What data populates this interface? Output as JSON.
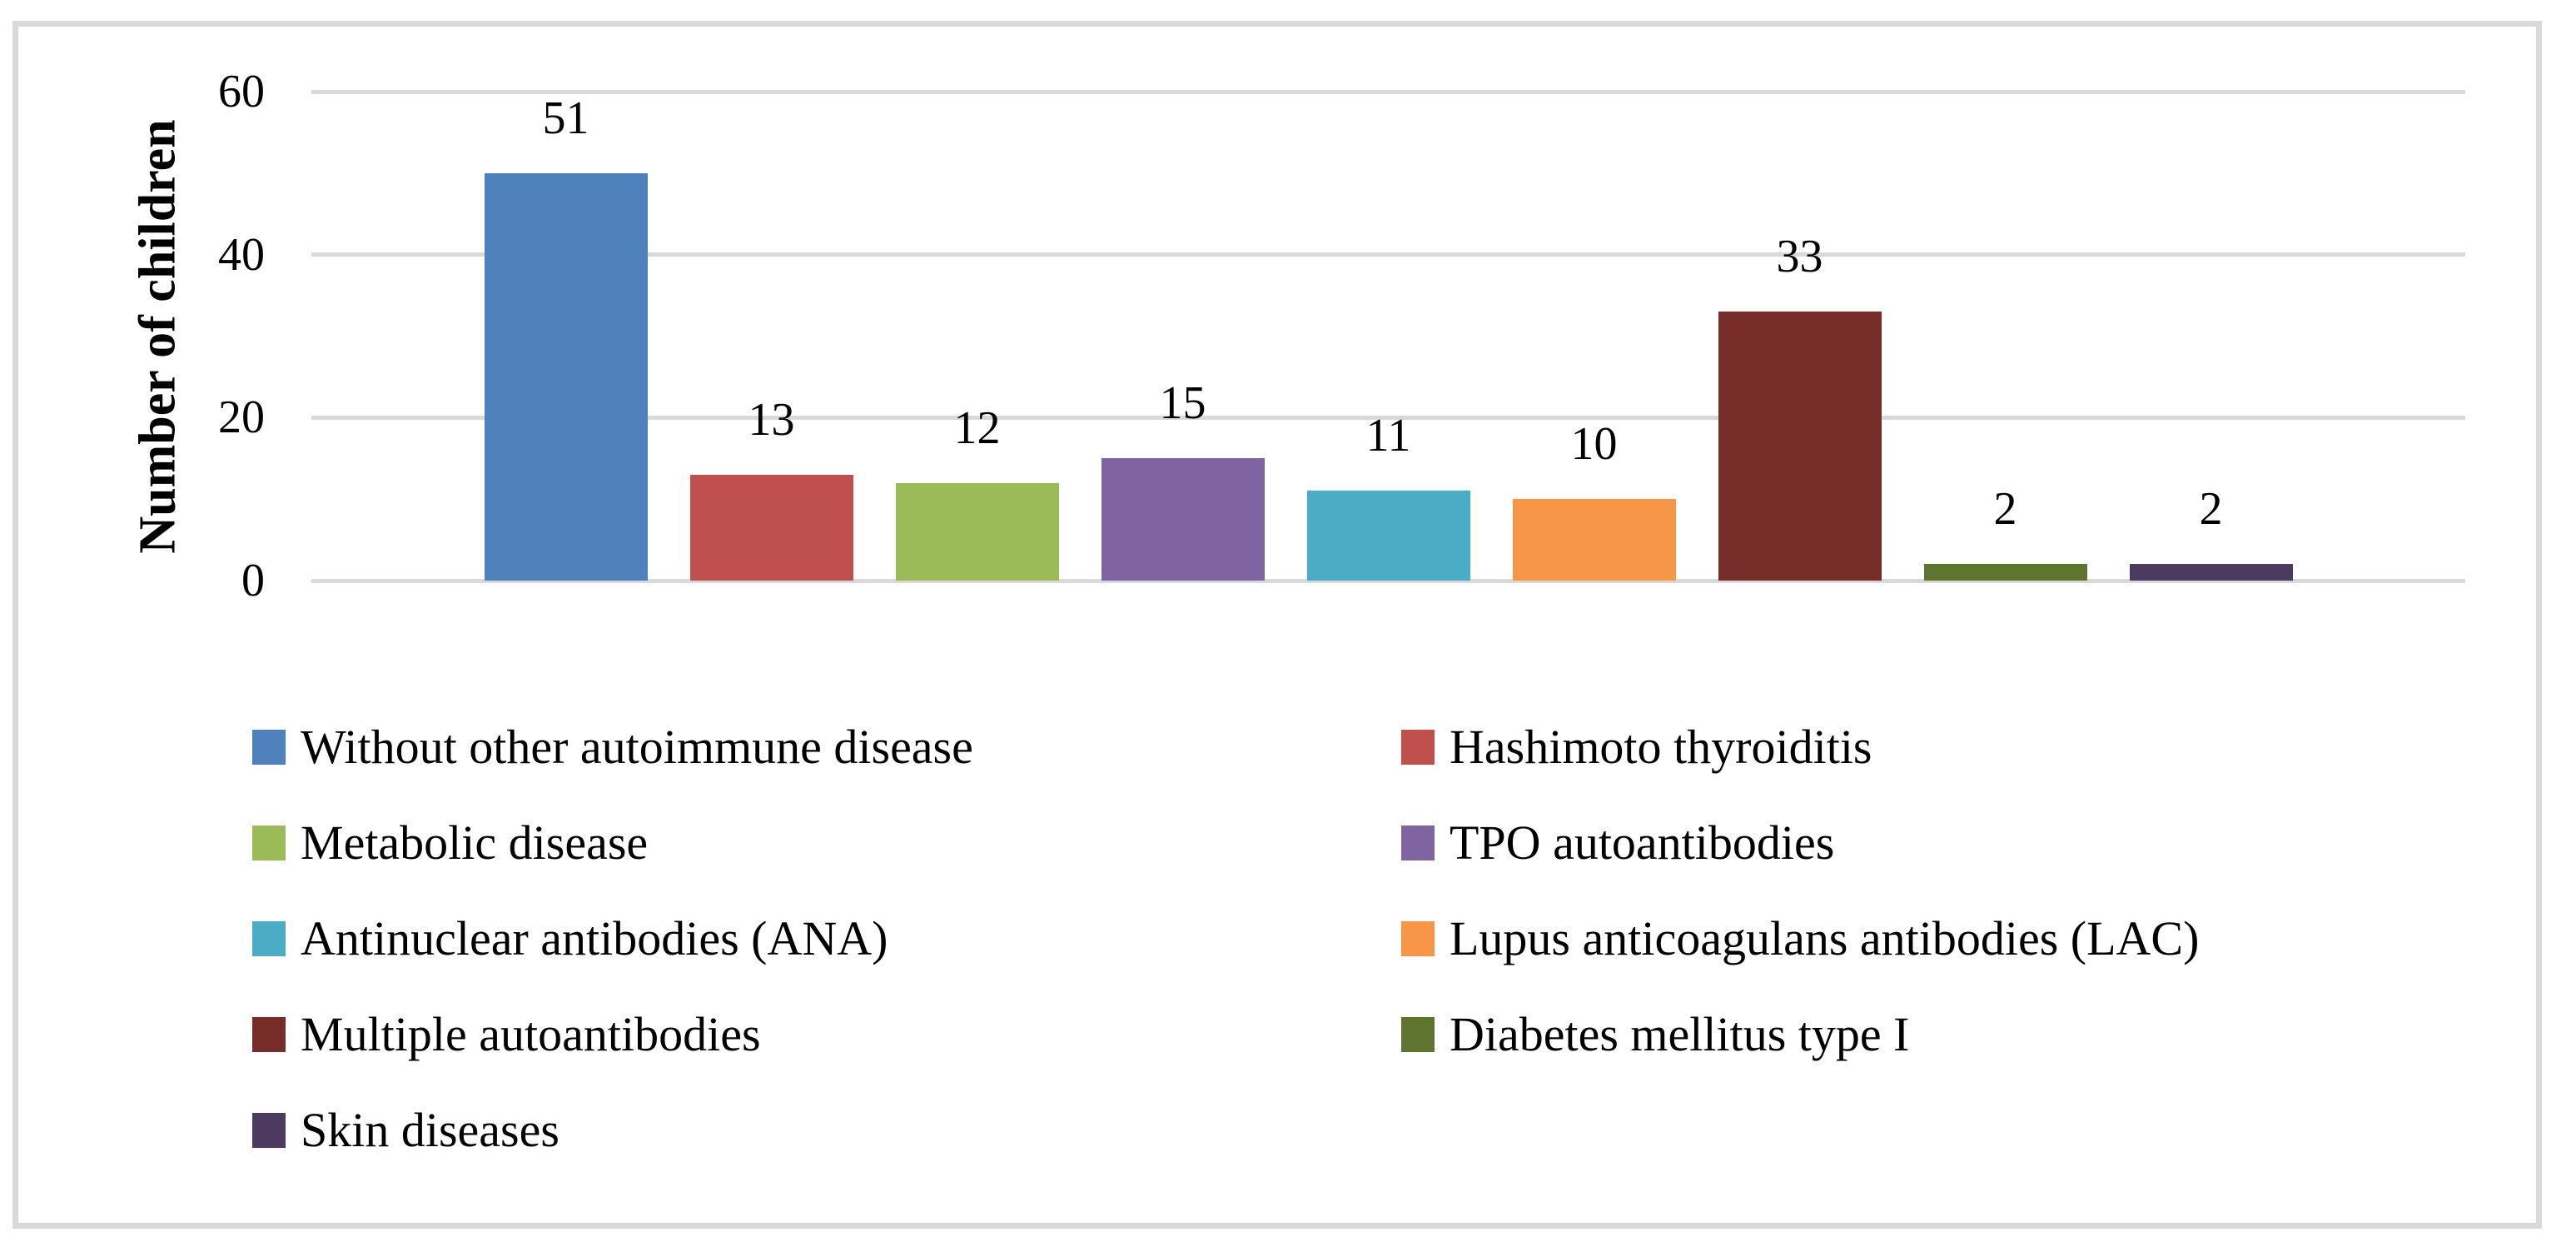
{
  "figure": {
    "background": "#FFFFFF",
    "border_color": "#D9D9D9"
  },
  "chart_data": {
    "type": "bar",
    "title": "",
    "xlabel": "",
    "ylabel": "Number of children",
    "ylim": [
      0,
      60
    ],
    "yticks": [
      0,
      20,
      40,
      60
    ],
    "grid": true,
    "gridline_color": "#D9D9D9",
    "text_color": "#000000",
    "legend_position": "bottom, two columns, row-major",
    "categories": [
      "Without other autoimmune disease",
      "Hashimoto thyroiditis",
      "Metabolic disease",
      "TPO autoantibodies",
      "Antinuclear antibodies (ANA)",
      "Lupus anticoagulans antibodies (LAC)",
      "Multiple autoantibodies",
      "Diabetes mellitus type I",
      "Skin diseases"
    ],
    "values": [
      51,
      13,
      12,
      15,
      11,
      10,
      33,
      2,
      2
    ],
    "colors": [
      "#4F81BD",
      "#C0504D",
      "#9BBB59",
      "#8064A2",
      "#4BACC6",
      "#F79646",
      "#772C2A",
      "#5E742F",
      "#4C3A60"
    ]
  }
}
